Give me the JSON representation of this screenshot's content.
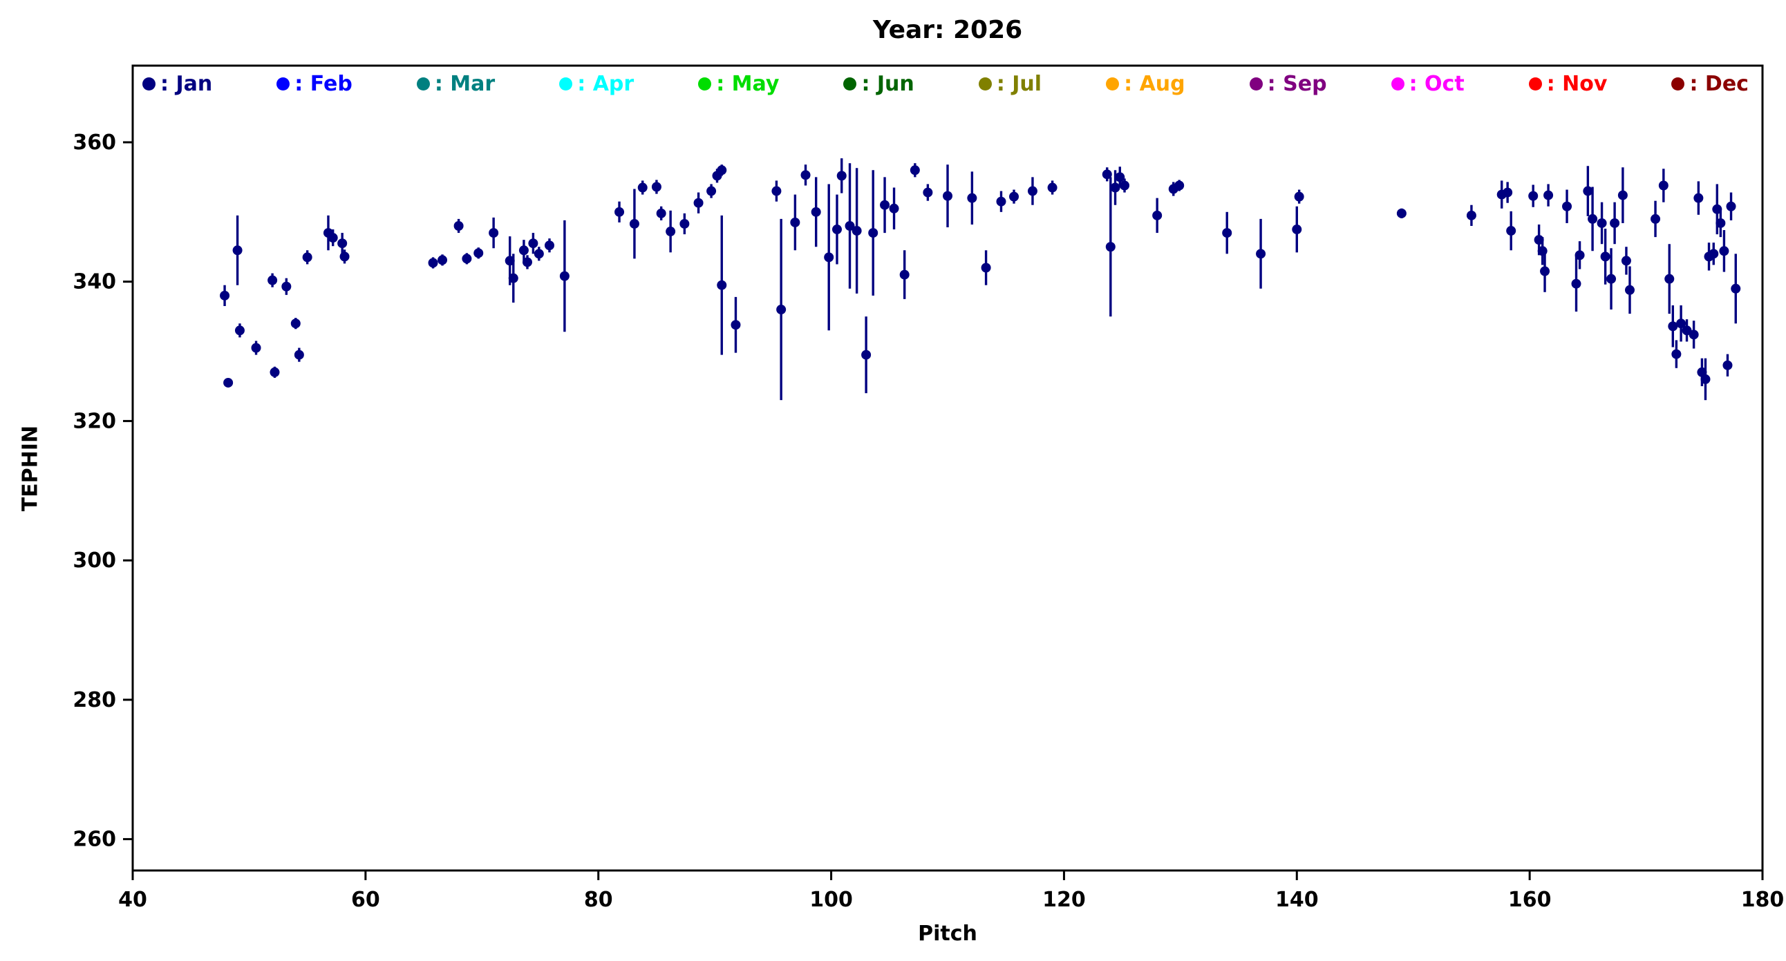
{
  "figure": {
    "background": "#ffffff",
    "text_color": "#000000"
  },
  "chart_data": {
    "type": "scatter",
    "title": "Year: 2026",
    "xlabel": "Pitch",
    "ylabel": "TEPHIN",
    "xlim": [
      40,
      180
    ],
    "ylim": [
      255.5,
      371
    ],
    "xticks": [
      40,
      60,
      80,
      100,
      120,
      140,
      160,
      180
    ],
    "yticks": [
      260,
      280,
      300,
      320,
      340,
      360
    ],
    "grid": false,
    "legend_position": "top-inside-row",
    "marker": "circle",
    "errorbars": true,
    "legend": [
      {
        "name": "Jan",
        "label": ": Jan",
        "color": "#000080"
      },
      {
        "name": "Feb",
        "label": ": Feb",
        "color": "#0000ff"
      },
      {
        "name": "Mar",
        "label": ": Mar",
        "color": "#008080"
      },
      {
        "name": "Apr",
        "label": ": Apr",
        "color": "#00ffff"
      },
      {
        "name": "May",
        "label": ": May",
        "color": "#00dd00"
      },
      {
        "name": "Jun",
        "label": ": Jun",
        "color": "#006400"
      },
      {
        "name": "Jul",
        "label": ": Jul",
        "color": "#808000"
      },
      {
        "name": "Aug",
        "label": ": Aug",
        "color": "#ffa500"
      },
      {
        "name": "Sep",
        "label": ": Sep",
        "color": "#800080"
      },
      {
        "name": "Oct",
        "label": ": Oct",
        "color": "#ff00ff"
      },
      {
        "name": "Nov",
        "label": ": Nov",
        "color": "#ff0000"
      },
      {
        "name": "Dec",
        "label": ": Dec",
        "color": "#8b0000"
      }
    ],
    "series": [
      {
        "name": "Jan",
        "color": "#000080",
        "points_format": [
          "pitch",
          "tephin",
          "tephin_err"
        ],
        "points": [
          [
            47.9,
            338.0,
            1.5
          ],
          [
            48.2,
            325.5,
            0.6
          ],
          [
            49.0,
            344.5,
            5.0
          ],
          [
            49.2,
            333.0,
            1.0
          ],
          [
            50.6,
            330.5,
            1.0
          ],
          [
            52.0,
            340.2,
            1.0
          ],
          [
            52.2,
            327.0,
            0.8
          ],
          [
            53.2,
            339.3,
            1.2
          ],
          [
            54.0,
            334.0,
            0.8
          ],
          [
            54.3,
            329.5,
            1.0
          ],
          [
            55.0,
            343.5,
            1.0
          ],
          [
            56.8,
            347.0,
            2.5
          ],
          [
            57.2,
            346.3,
            1.2
          ],
          [
            58.0,
            345.5,
            1.5
          ],
          [
            58.2,
            343.6,
            1.0
          ],
          [
            65.8,
            342.7,
            0.8
          ],
          [
            66.6,
            343.1,
            0.8
          ],
          [
            68.0,
            348.0,
            1.0
          ],
          [
            68.7,
            343.3,
            0.8
          ],
          [
            69.7,
            344.1,
            0.8
          ],
          [
            71.0,
            347.0,
            2.2
          ],
          [
            72.4,
            343.0,
            3.5
          ],
          [
            72.7,
            340.5,
            3.5
          ],
          [
            73.6,
            344.5,
            1.5
          ],
          [
            73.9,
            342.8,
            1.0
          ],
          [
            74.4,
            345.5,
            1.5
          ],
          [
            74.9,
            344.0,
            1.0
          ],
          [
            75.8,
            345.2,
            1.0
          ],
          [
            77.1,
            340.8,
            8.0
          ],
          [
            81.8,
            350.0,
            1.5
          ],
          [
            83.1,
            348.3,
            5.0
          ],
          [
            83.8,
            353.5,
            1.0
          ],
          [
            85.0,
            353.6,
            1.0
          ],
          [
            85.4,
            349.8,
            1.0
          ],
          [
            86.2,
            347.2,
            3.0
          ],
          [
            87.4,
            348.3,
            1.5
          ],
          [
            88.6,
            351.3,
            1.5
          ],
          [
            89.7,
            353.0,
            1.0
          ],
          [
            90.2,
            355.2,
            1.0
          ],
          [
            90.6,
            356.0,
            0.8
          ],
          [
            90.6,
            339.5,
            10.0
          ],
          [
            91.8,
            333.8,
            4.0
          ],
          [
            95.3,
            353.0,
            1.5
          ],
          [
            95.7,
            336.0,
            13.0
          ],
          [
            96.9,
            348.5,
            4.0
          ],
          [
            97.8,
            355.3,
            1.5
          ],
          [
            98.7,
            350.0,
            5.0
          ],
          [
            99.8,
            343.5,
            10.5
          ],
          [
            100.5,
            347.5,
            5.0
          ],
          [
            100.9,
            355.2,
            2.5
          ],
          [
            101.6,
            348.0,
            9.0
          ],
          [
            102.2,
            347.3,
            9.0
          ],
          [
            103.0,
            329.5,
            5.5
          ],
          [
            103.6,
            347.0,
            9.0
          ],
          [
            104.6,
            351.0,
            4.0
          ],
          [
            105.4,
            350.5,
            3.0
          ],
          [
            106.3,
            341.0,
            3.5
          ],
          [
            107.2,
            356.0,
            1.0
          ],
          [
            108.3,
            352.8,
            1.2
          ],
          [
            110.0,
            352.3,
            4.5
          ],
          [
            112.1,
            352.0,
            3.8
          ],
          [
            113.3,
            342.0,
            2.5
          ],
          [
            114.6,
            351.5,
            1.5
          ],
          [
            115.7,
            352.2,
            1.0
          ],
          [
            117.3,
            353.0,
            2.0
          ],
          [
            119.0,
            353.5,
            1.0
          ],
          [
            123.7,
            355.4,
            1.0
          ],
          [
            124.0,
            345.0,
            10.0
          ],
          [
            124.4,
            353.5,
            2.5
          ],
          [
            124.8,
            355.0,
            1.5
          ],
          [
            125.2,
            353.8,
            1.0
          ],
          [
            128.0,
            349.5,
            2.5
          ],
          [
            129.4,
            353.3,
            1.0
          ],
          [
            129.9,
            353.8,
            0.8
          ],
          [
            134.0,
            347.0,
            3.0
          ],
          [
            136.9,
            344.0,
            5.0
          ],
          [
            140.0,
            347.5,
            3.3
          ],
          [
            140.2,
            352.2,
            1.0
          ],
          [
            149.0,
            349.8,
            0.7
          ],
          [
            155.0,
            349.5,
            1.5
          ],
          [
            157.6,
            352.5,
            2.0
          ],
          [
            158.1,
            352.8,
            1.5
          ],
          [
            158.4,
            347.3,
            2.8
          ],
          [
            160.3,
            352.3,
            1.6
          ],
          [
            160.8,
            346.0,
            2.2
          ],
          [
            161.1,
            344.4,
            2.0
          ],
          [
            161.3,
            341.5,
            3.0
          ],
          [
            161.6,
            352.4,
            1.6
          ],
          [
            163.2,
            350.8,
            2.4
          ],
          [
            164.0,
            339.7,
            4.0
          ],
          [
            164.3,
            343.8,
            2.0
          ],
          [
            165.0,
            353.0,
            3.6
          ],
          [
            165.4,
            349.0,
            4.6
          ],
          [
            166.2,
            348.4,
            3.0
          ],
          [
            166.5,
            343.6,
            4.0
          ],
          [
            167.0,
            340.4,
            4.4
          ],
          [
            167.3,
            348.4,
            3.0
          ],
          [
            168.0,
            352.4,
            4.0
          ],
          [
            168.3,
            343.0,
            2.0
          ],
          [
            168.6,
            338.8,
            3.4
          ],
          [
            170.8,
            349.0,
            2.6
          ],
          [
            171.5,
            353.8,
            2.4
          ],
          [
            172.0,
            340.4,
            5.0
          ],
          [
            172.3,
            333.6,
            3.0
          ],
          [
            172.6,
            329.6,
            2.0
          ],
          [
            173.0,
            334.0,
            2.6
          ],
          [
            173.5,
            333.0,
            1.6
          ],
          [
            174.1,
            332.4,
            2.0
          ],
          [
            174.5,
            352.0,
            2.4
          ],
          [
            174.8,
            327.0,
            2.0
          ],
          [
            175.1,
            326.0,
            3.0
          ],
          [
            175.4,
            343.6,
            2.0
          ],
          [
            175.8,
            344.0,
            1.6
          ],
          [
            176.1,
            350.4,
            3.6
          ],
          [
            176.4,
            348.4,
            2.0
          ],
          [
            176.7,
            344.4,
            3.0
          ],
          [
            177.0,
            328.0,
            1.6
          ],
          [
            177.3,
            350.8,
            2.0
          ],
          [
            177.7,
            339.0,
            5.0
          ]
        ]
      }
    ]
  }
}
